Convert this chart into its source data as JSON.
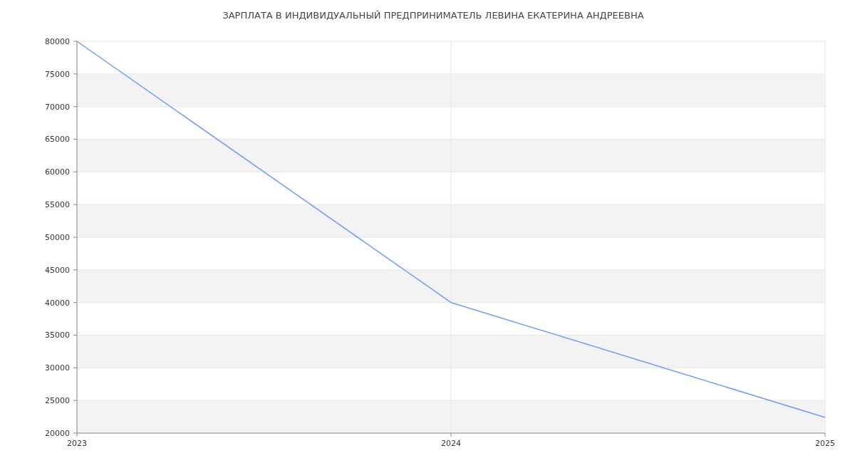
{
  "chart_data": {
    "type": "line",
    "title": "ЗАРПЛАТА В ИНДИВИДУАЛЬНЫЙ ПРЕДПРИНИМАТЕЛЬ ЛЕВИНА ЕКАТЕРИНА АНДРЕЕВНА",
    "categories": [
      "2023",
      "2024",
      "2025"
    ],
    "series": [
      {
        "color": "#6e9cf7",
        "values": [
          80000,
          40000,
          22400
        ]
      }
    ],
    "ylim": [
      20000,
      80000
    ],
    "yticks": [
      20000,
      25000,
      30000,
      35000,
      40000,
      45000,
      50000,
      55000,
      60000,
      65000,
      70000,
      75000,
      80000
    ],
    "grid": true
  }
}
